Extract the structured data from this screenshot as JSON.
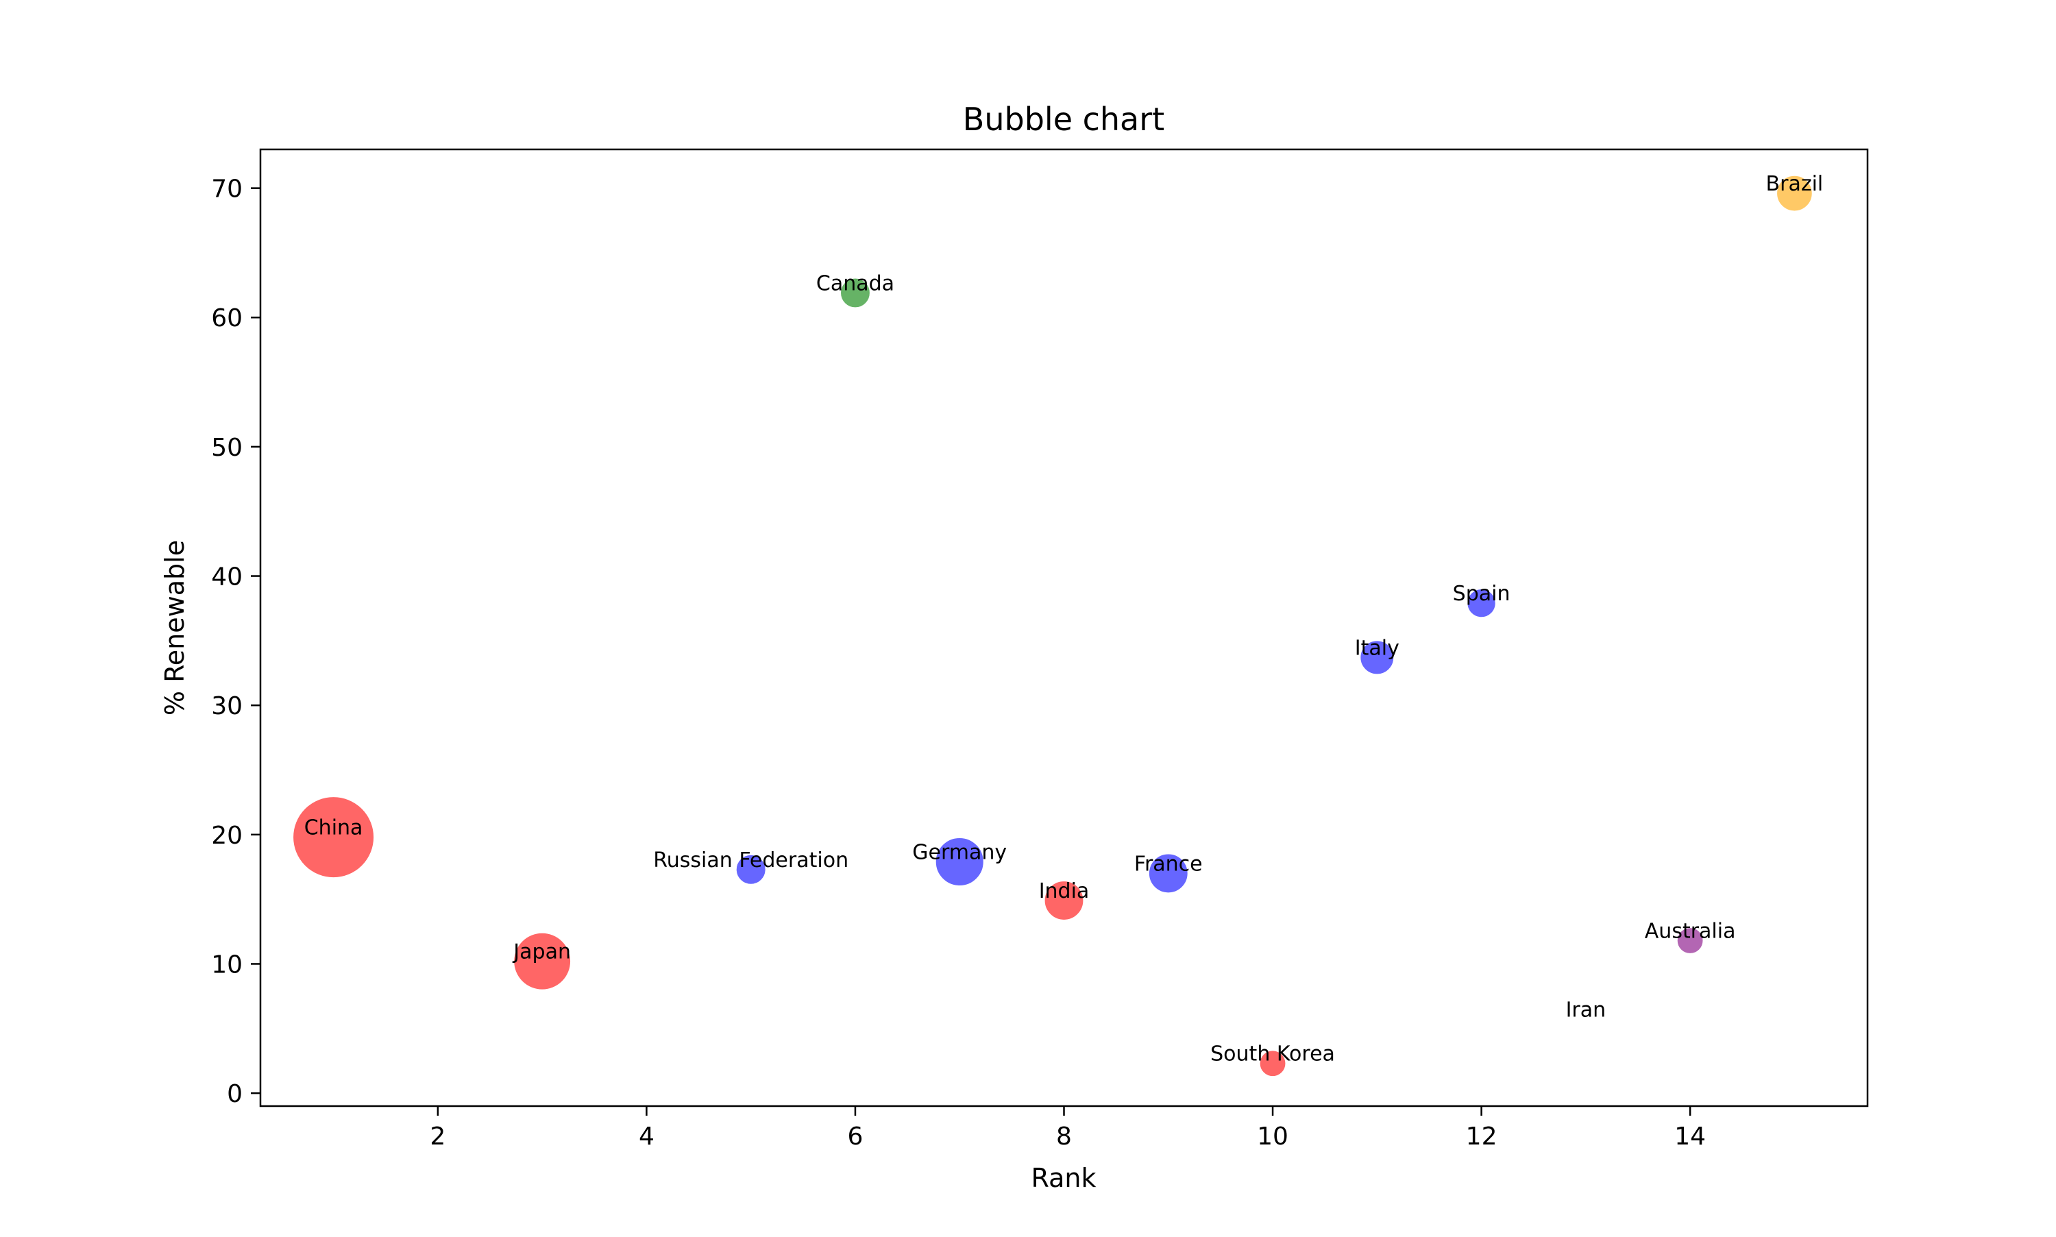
{
  "chart_data": {
    "type": "scatter",
    "title": "Bubble chart",
    "xlabel": "Rank",
    "ylabel": "% Renewable",
    "xlim": [
      0.3,
      15.7
    ],
    "ylim": [
      -1,
      73
    ],
    "xticks": [
      2,
      4,
      6,
      8,
      10,
      12,
      14
    ],
    "yticks": [
      0,
      10,
      20,
      30,
      40,
      50,
      60,
      70
    ],
    "grid": false,
    "marker_alpha": 0.6,
    "points": [
      {
        "label": "China",
        "x": 1,
        "y": 19.8,
        "size": 100,
        "color": "#ff0000"
      },
      {
        "label": "Japan",
        "x": 3,
        "y": 10.2,
        "size": 50,
        "color": "#ff0000"
      },
      {
        "label": "Russian Federation",
        "x": 5,
        "y": 17.3,
        "size": 14,
        "color": "#0000ff"
      },
      {
        "label": "Canada",
        "x": 6,
        "y": 61.9,
        "size": 14,
        "color": "#008000"
      },
      {
        "label": "Germany",
        "x": 7,
        "y": 17.9,
        "size": 36,
        "color": "#0000ff"
      },
      {
        "label": "India",
        "x": 8,
        "y": 14.9,
        "size": 24,
        "color": "#ff0000"
      },
      {
        "label": "France",
        "x": 9,
        "y": 17.0,
        "size": 24,
        "color": "#0000ff"
      },
      {
        "label": "South Korea",
        "x": 10,
        "y": 2.3,
        "size": 11,
        "color": "#ff0000"
      },
      {
        "label": "Italy",
        "x": 11,
        "y": 33.7,
        "size": 18,
        "color": "#0000ff"
      },
      {
        "label": "Spain",
        "x": 12,
        "y": 37.9,
        "size": 13,
        "color": "#0000ff"
      },
      {
        "label": "Iran",
        "x": 13,
        "y": 5.7,
        "size": 0,
        "color": "#ffffff"
      },
      {
        "label": "Australia",
        "x": 14,
        "y": 11.8,
        "size": 11,
        "color": "#800080"
      },
      {
        "label": "Brazil",
        "x": 15,
        "y": 69.6,
        "size": 20,
        "color": "#ffa500"
      }
    ]
  }
}
